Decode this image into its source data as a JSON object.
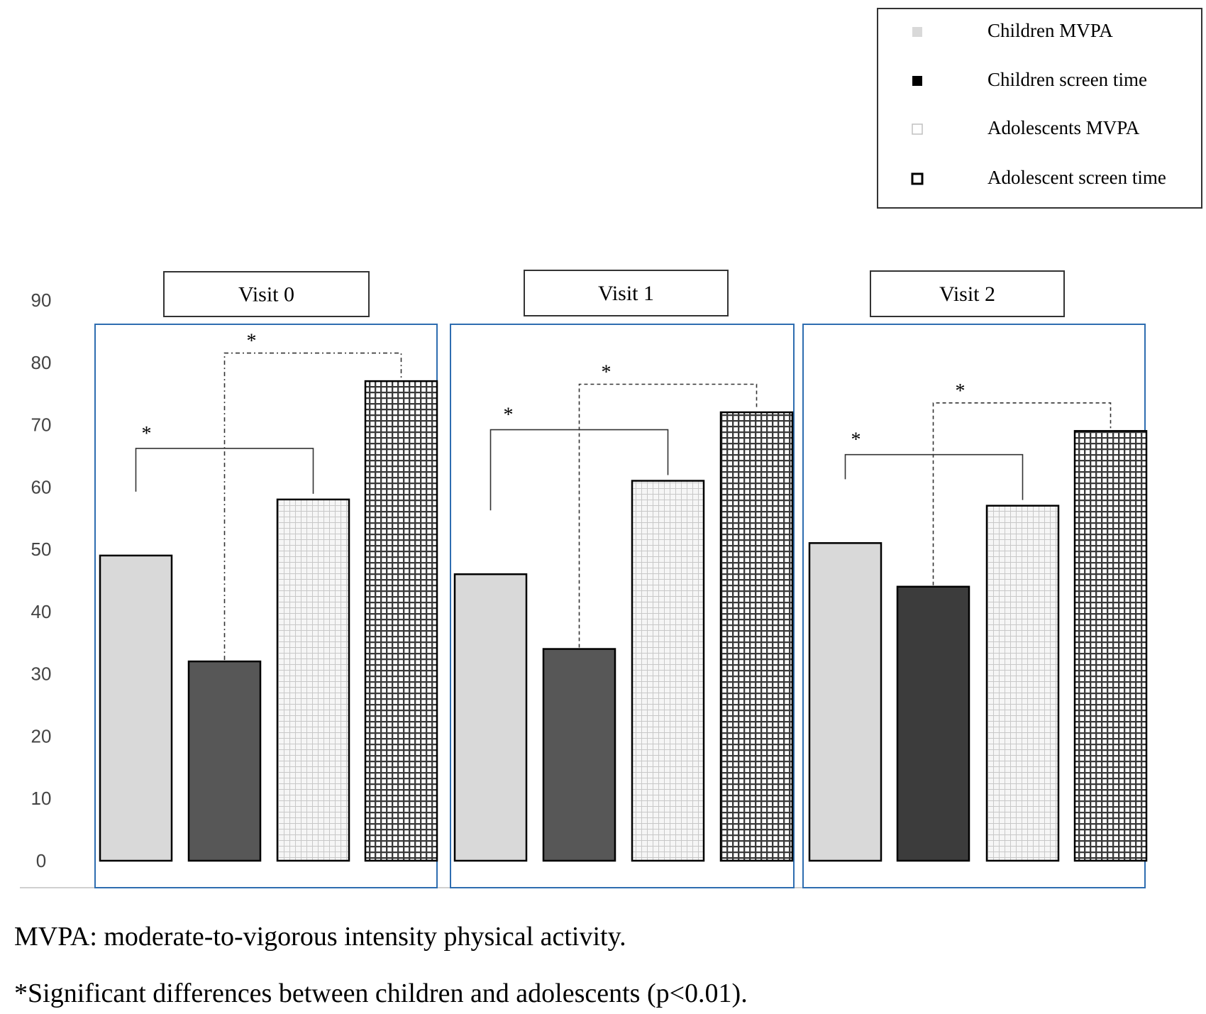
{
  "chart_data": {
    "type": "bar",
    "title": "",
    "xlabel": "",
    "ylabel": "",
    "ylim": [
      0,
      90
    ],
    "yticks": [
      0,
      10,
      20,
      30,
      40,
      50,
      60,
      70,
      80,
      90
    ],
    "categories": [
      "Visit 0",
      "Visit 1",
      "Visit 2"
    ],
    "series": [
      {
        "name": "Children MVPA",
        "values": [
          49,
          46,
          51
        ]
      },
      {
        "name": "Children screen time",
        "values": [
          32,
          34,
          44
        ]
      },
      {
        "name": "Adolescents MVPA",
        "values": [
          58,
          61,
          57
        ]
      },
      {
        "name": "Adolescent screen time",
        "values": [
          77,
          72,
          69
        ]
      }
    ],
    "legend_position": "top-right",
    "annotations": [
      {
        "visit": 0,
        "pair": "MVPA",
        "label": "*"
      },
      {
        "visit": 0,
        "pair": "screen time",
        "label": "*"
      },
      {
        "visit": 1,
        "pair": "MVPA",
        "label": "*"
      },
      {
        "visit": 1,
        "pair": "screen time",
        "label": "*"
      },
      {
        "visit": 2,
        "pair": "MVPA",
        "label": "*"
      },
      {
        "visit": 2,
        "pair": "screen time",
        "label": "*"
      }
    ]
  },
  "colors": {
    "children_mvpa": "#d9d9d9",
    "children_screen": "#575757",
    "children_screen_v2": "#3c3c3c",
    "adolescents_mvpa_bg": "#f6f6f6",
    "adolescents_mvpa_grid": "#c8c8c8",
    "adolescent_screen_bg": "#ffffff",
    "adolescent_screen_grid": "#3a3a3a",
    "panel_border": "#2e6db0",
    "axis_line": "#d0d0d0"
  },
  "footnotes": {
    "mvpa_definition": "MVPA: moderate-to-vigorous intensity physical activity.",
    "significance": "*Significant differences between children and adolescents (p<0.01)."
  }
}
